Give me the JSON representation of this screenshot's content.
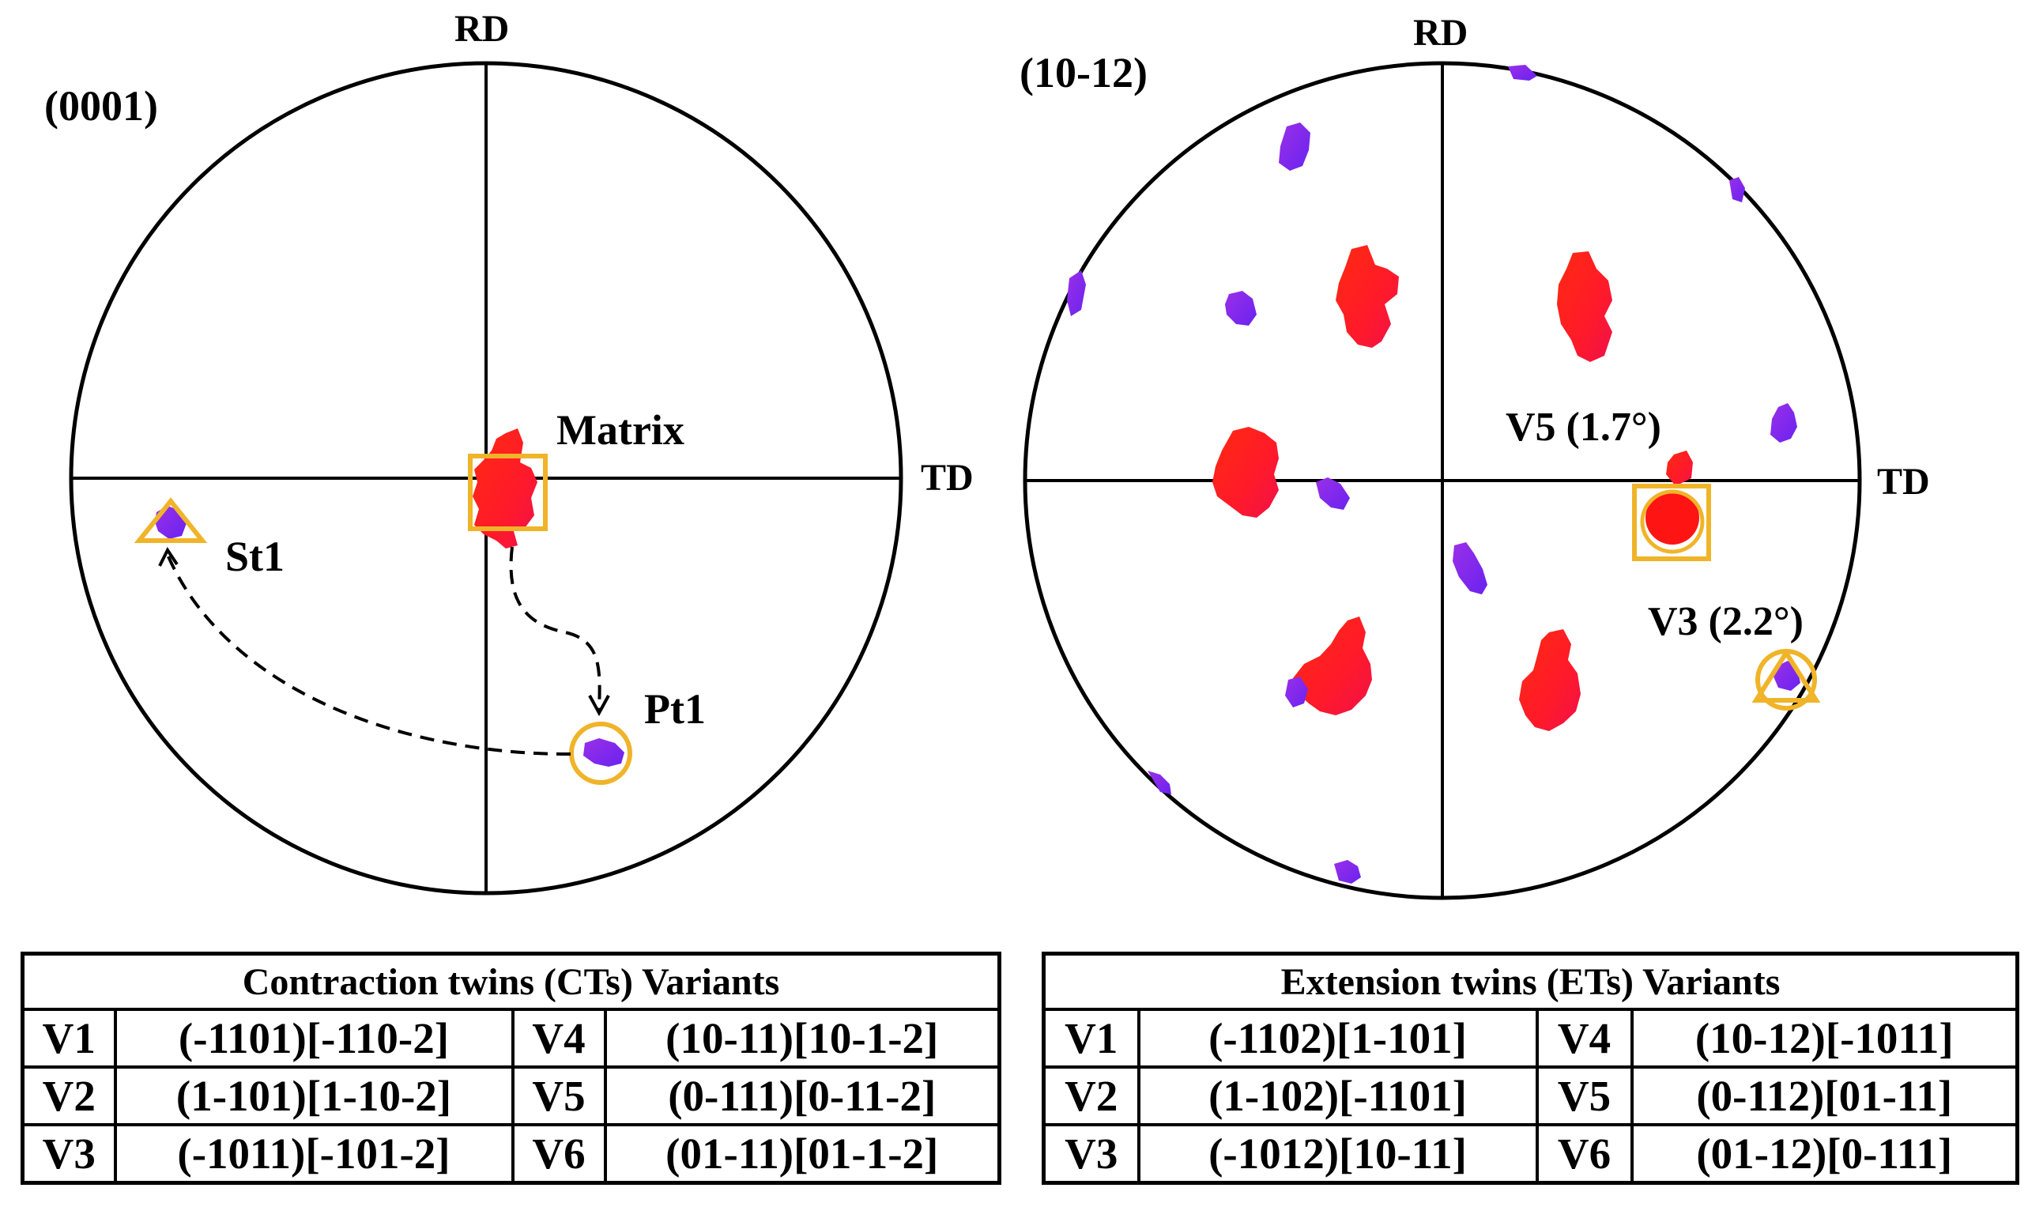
{
  "left_plot": {
    "label": "(0001)",
    "axis_rd": "RD",
    "axis_td": "TD",
    "annotations": {
      "matrix": "Matrix",
      "st1": "St1",
      "pt1": "Pt1"
    }
  },
  "right_plot": {
    "label": "(10-12)",
    "axis_rd": "RD",
    "axis_td": "TD",
    "annotations": {
      "v5": "V5 (1.7°)",
      "v3": "V3 (2.2°)"
    }
  },
  "colors": {
    "matrix_red": "#ff1a1a",
    "twin_purple": "#8a2be2",
    "marker_orange": "#f0b429",
    "line_black": "#000000"
  },
  "contraction_table": {
    "title": "Contraction twins (CTs) Variants",
    "rows": [
      {
        "v1": "V1",
        "p1": "(-1101)[-110-2]",
        "v2": "V4",
        "p2": "(10-11)[10-1-2]"
      },
      {
        "v1": "V2",
        "p1": "(1-101)[1-10-2]",
        "v2": "V5",
        "p2": "(0-111)[0-11-2]"
      },
      {
        "v1": "V3",
        "p1": "(-1011)[-101-2]",
        "v2": "V6",
        "p2": "(01-11)[01-1-2]"
      }
    ]
  },
  "extension_table": {
    "title": "Extension twins (ETs) Variants",
    "rows": [
      {
        "v1": "V1",
        "p1": "(-1102)[1-101]",
        "v2": "V4",
        "p2": "(10-12)[-1011]"
      },
      {
        "v1": "V2",
        "p1": "(1-102)[-1101]",
        "v2": "V5",
        "p2": "(0-112)[01-11]"
      },
      {
        "v1": "V3",
        "p1": "(-1012)[10-11]",
        "v2": "V6",
        "p2": "(01-12)[0-111]"
      }
    ]
  }
}
